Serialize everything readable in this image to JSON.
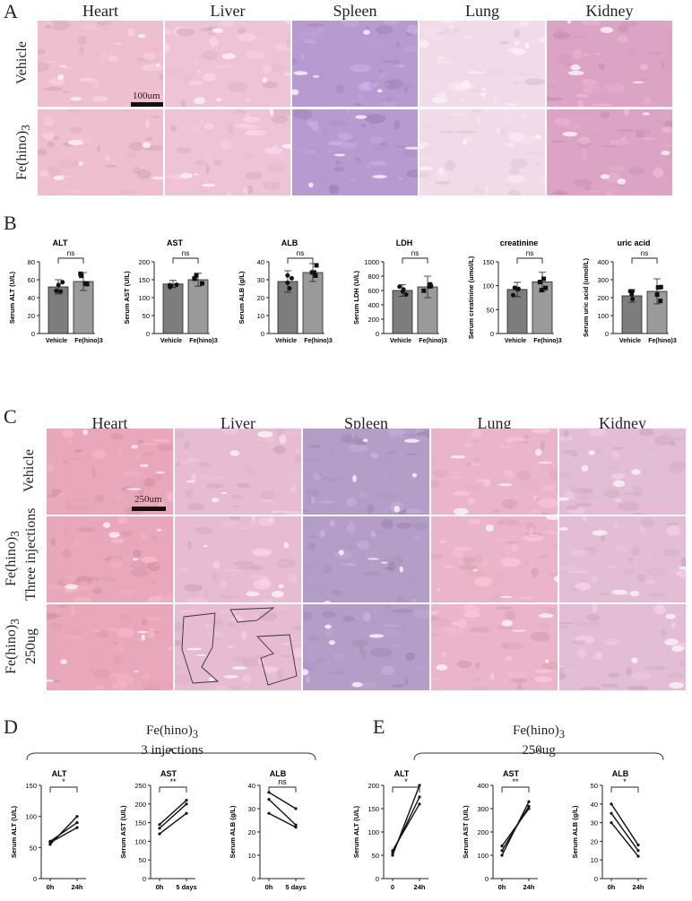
{
  "panel_a": {
    "letter": "A",
    "columns": [
      "Heart",
      "Liver",
      "Spleen",
      "Lung",
      "Kidney"
    ],
    "rows": [
      "Vehicle",
      "Fe(hino)3"
    ],
    "row_labels_display": [
      {
        "main": "Vehicle",
        "sub": ""
      },
      {
        "main": "Fe(hino)",
        "sub": "3"
      }
    ],
    "scale_label": "100um",
    "tile_colors": {
      "Heart": "#eebfcf",
      "Liver": "#eec3d6",
      "Spleen": "#b79ad0",
      "Lung": "#f2dbe8",
      "Kidney": "#dba4c4"
    }
  },
  "panel_b": {
    "letter": "B",
    "charts": [
      {
        "title": "ALT",
        "ylabel": "Serum ALT (U/L)",
        "ylim": [
          0,
          80
        ],
        "yticks": [
          "0",
          "20",
          "40",
          "60",
          "80"
        ],
        "categories": [
          "Vehicle",
          "Fe(hino)3"
        ],
        "values": [
          52,
          58
        ],
        "errors": [
          8,
          10
        ],
        "sig": "ns"
      },
      {
        "title": "AST",
        "ylabel": "Serum AST (U/L)",
        "ylim": [
          0,
          200
        ],
        "yticks": [
          "0",
          "50",
          "100",
          "150",
          "200"
        ],
        "categories": [
          "Vehicle",
          "Fe(hino)3"
        ],
        "values": [
          138,
          150
        ],
        "errors": [
          10,
          18
        ],
        "sig": "ns"
      },
      {
        "title": "ALB",
        "ylabel": "Serum ALB (g/L)",
        "ylim": [
          0,
          40
        ],
        "yticks": [
          "0",
          "10",
          "20",
          "30",
          "40"
        ],
        "categories": [
          "Vehicle",
          "Fe(hino)3"
        ],
        "values": [
          29,
          34
        ],
        "errors": [
          6,
          5
        ],
        "sig": "ns"
      },
      {
        "title": "LDH",
        "ylabel": "Serum LDH (U/L)",
        "ylim": [
          0,
          1000
        ],
        "yticks": [
          "0",
          "200",
          "400",
          "600",
          "800",
          "1000"
        ],
        "categories": [
          "Vehicle",
          "Fe(hino)3"
        ],
        "values": [
          600,
          650
        ],
        "errors": [
          80,
          150
        ],
        "sig": "ns"
      },
      {
        "title": "creatinine",
        "ylabel": "Serum creatinine (umol/L)",
        "ylim": [
          0,
          150
        ],
        "yticks": [
          "0",
          "50",
          "100",
          "150"
        ],
        "categories": [
          "Vehicle",
          "Fe(hino)3"
        ],
        "values": [
          92,
          108
        ],
        "errors": [
          15,
          20
        ],
        "sig": "ns"
      },
      {
        "title": "uric acid",
        "ylabel": "Serum uric acid (umol/L)",
        "ylim": [
          0,
          400
        ],
        "yticks": [
          "0",
          "100",
          "200",
          "300",
          "400"
        ],
        "categories": [
          "Vehicle",
          "Fe(hino)3"
        ],
        "values": [
          210,
          235
        ],
        "errors": [
          35,
          70
        ],
        "sig": "ns"
      }
    ]
  },
  "panel_c": {
    "letter": "C",
    "columns": [
      "Heart",
      "Liver",
      "Spleen",
      "Lung",
      "Kidney"
    ],
    "rows": [
      {
        "main": "Vehicle",
        "sub": "",
        "second": ""
      },
      {
        "main": "Fe(hino)",
        "sub": "3",
        "second": "Three injections"
      },
      {
        "main": "Fe(hino)",
        "sub": "3",
        "second": "250ug"
      }
    ],
    "scale_label": "250um",
    "tile_colors": {
      "Heart": "#e8a7ba",
      "Liver": "#e7bcd2",
      "Spleen": "#b49ec8",
      "Lung": "#eab5c8",
      "Kidney": "#e3bdd6"
    }
  },
  "panel_d": {
    "letter": "D",
    "group_title": {
      "main": "Fe(hino)",
      "sub": "3",
      "second": "3 injections"
    },
    "charts": [
      {
        "title": "ALT",
        "ylabel": "Serum ALT (U/L)",
        "ylim": [
          0,
          150
        ],
        "yticks": [
          "0",
          "50",
          "100",
          "150"
        ],
        "xticks": [
          "0h",
          "24h"
        ],
        "lines": [
          [
            55,
            100
          ],
          [
            60,
            90
          ],
          [
            58,
            82
          ]
        ],
        "sig": "*"
      },
      {
        "title": "AST",
        "ylabel": "Serum AST (U/L)",
        "ylim": [
          0,
          250
        ],
        "yticks": [
          "0",
          "50",
          "100",
          "150",
          "200",
          "250"
        ],
        "xticks": [
          "0h",
          "5 days"
        ],
        "lines": [
          [
            120,
            175
          ],
          [
            135,
            200
          ],
          [
            145,
            210
          ]
        ],
        "sig": "**"
      },
      {
        "title": "ALB",
        "ylabel": "Serum ALB (g/L)",
        "ylim": [
          0,
          40
        ],
        "yticks": [
          "0",
          "10",
          "20",
          "30",
          "40"
        ],
        "xticks": [
          "0h",
          "5 days"
        ],
        "lines": [
          [
            28,
            22
          ],
          [
            34,
            23
          ],
          [
            37,
            30
          ]
        ],
        "sig": "ns"
      }
    ]
  },
  "panel_e": {
    "letter": "E",
    "group_title": {
      "main": "Fe(hino)",
      "sub": "3",
      "second": "250ug"
    },
    "charts": [
      {
        "title": "ALT",
        "ylabel": "Serum ALT (U/L)",
        "ylim": [
          0,
          200
        ],
        "yticks": [
          "0",
          "50",
          "100",
          "150",
          "200"
        ],
        "xticks": [
          "0",
          "24h"
        ],
        "lines": [
          [
            50,
            200
          ],
          [
            55,
            175
          ],
          [
            60,
            160
          ]
        ],
        "sig": "*"
      },
      {
        "title": "AST",
        "ylabel": "Serum AST (U/L)",
        "ylim": [
          0,
          400
        ],
        "yticks": [
          "0",
          "100",
          "200",
          "300",
          "400"
        ],
        "xticks": [
          "0h",
          "24h"
        ],
        "lines": [
          [
            100,
            330
          ],
          [
            120,
            310
          ],
          [
            140,
            300
          ]
        ],
        "sig": "**"
      },
      {
        "title": "ALB",
        "ylabel": "Serum ALB (g/L)",
        "ylim": [
          0,
          50
        ],
        "yticks": [
          "0",
          "10",
          "20",
          "30",
          "40",
          "50"
        ],
        "xticks": [
          "0h",
          "24h"
        ],
        "lines": [
          [
            40,
            18
          ],
          [
            35,
            15
          ],
          [
            30,
            12
          ]
        ],
        "sig": "*"
      }
    ]
  },
  "chart_data": [
    {
      "type": "bar",
      "title": "ALT",
      "ylabel": "Serum ALT (U/L)",
      "categories": [
        "Vehicle",
        "Fe(hino)3"
      ],
      "values": [
        52,
        58
      ],
      "ylim": [
        0,
        80
      ]
    },
    {
      "type": "bar",
      "title": "AST",
      "ylabel": "Serum AST (U/L)",
      "categories": [
        "Vehicle",
        "Fe(hino)3"
      ],
      "values": [
        138,
        150
      ],
      "ylim": [
        0,
        200
      ]
    },
    {
      "type": "bar",
      "title": "ALB",
      "ylabel": "Serum ALB (g/L)",
      "categories": [
        "Vehicle",
        "Fe(hino)3"
      ],
      "values": [
        29,
        34
      ],
      "ylim": [
        0,
        40
      ]
    },
    {
      "type": "bar",
      "title": "LDH",
      "ylabel": "Serum LDH (U/L)",
      "categories": [
        "Vehicle",
        "Fe(hino)3"
      ],
      "values": [
        600,
        650
      ],
      "ylim": [
        0,
        1000
      ]
    },
    {
      "type": "bar",
      "title": "creatinine",
      "ylabel": "Serum creatinine (umol/L)",
      "categories": [
        "Vehicle",
        "Fe(hino)3"
      ],
      "values": [
        92,
        108
      ],
      "ylim": [
        0,
        150
      ]
    },
    {
      "type": "bar",
      "title": "uric acid",
      "ylabel": "Serum uric acid (umol/L)",
      "categories": [
        "Vehicle",
        "Fe(hino)3"
      ],
      "values": [
        210,
        235
      ],
      "ylim": [
        0,
        400
      ]
    },
    {
      "type": "line",
      "title": "ALT",
      "ylabel": "Serum ALT (U/L)",
      "x": [
        "0h",
        "24h"
      ],
      "series": [
        {
          "values": [
            55,
            100
          ]
        },
        {
          "values": [
            60,
            90
          ]
        },
        {
          "values": [
            58,
            82
          ]
        }
      ],
      "ylim": [
        0,
        150
      ]
    },
    {
      "type": "line",
      "title": "AST",
      "ylabel": "Serum AST (U/L)",
      "x": [
        "0h",
        "5 days"
      ],
      "series": [
        {
          "values": [
            120,
            175
          ]
        },
        {
          "values": [
            135,
            200
          ]
        },
        {
          "values": [
            145,
            210
          ]
        }
      ],
      "ylim": [
        0,
        250
      ]
    },
    {
      "type": "line",
      "title": "ALB",
      "ylabel": "Serum ALB (g/L)",
      "x": [
        "0h",
        "5 days"
      ],
      "series": [
        {
          "values": [
            28,
            22
          ]
        },
        {
          "values": [
            34,
            23
          ]
        },
        {
          "values": [
            37,
            30
          ]
        }
      ],
      "ylim": [
        0,
        40
      ]
    },
    {
      "type": "line",
      "title": "ALT",
      "ylabel": "Serum ALT (U/L)",
      "x": [
        "0",
        "24h"
      ],
      "series": [
        {
          "values": [
            50,
            200
          ]
        },
        {
          "values": [
            55,
            175
          ]
        },
        {
          "values": [
            60,
            160
          ]
        }
      ],
      "ylim": [
        0,
        200
      ]
    },
    {
      "type": "line",
      "title": "AST",
      "ylabel": "Serum AST (U/L)",
      "x": [
        "0h",
        "24h"
      ],
      "series": [
        {
          "values": [
            100,
            330
          ]
        },
        {
          "values": [
            120,
            310
          ]
        },
        {
          "values": [
            140,
            300
          ]
        }
      ],
      "ylim": [
        0,
        400
      ]
    },
    {
      "type": "line",
      "title": "ALB",
      "ylabel": "Serum ALB (g/L)",
      "x": [
        "0h",
        "24h"
      ],
      "series": [
        {
          "values": [
            40,
            18
          ]
        },
        {
          "values": [
            35,
            15
          ]
        },
        {
          "values": [
            30,
            12
          ]
        }
      ],
      "ylim": [
        0,
        50
      ]
    }
  ]
}
